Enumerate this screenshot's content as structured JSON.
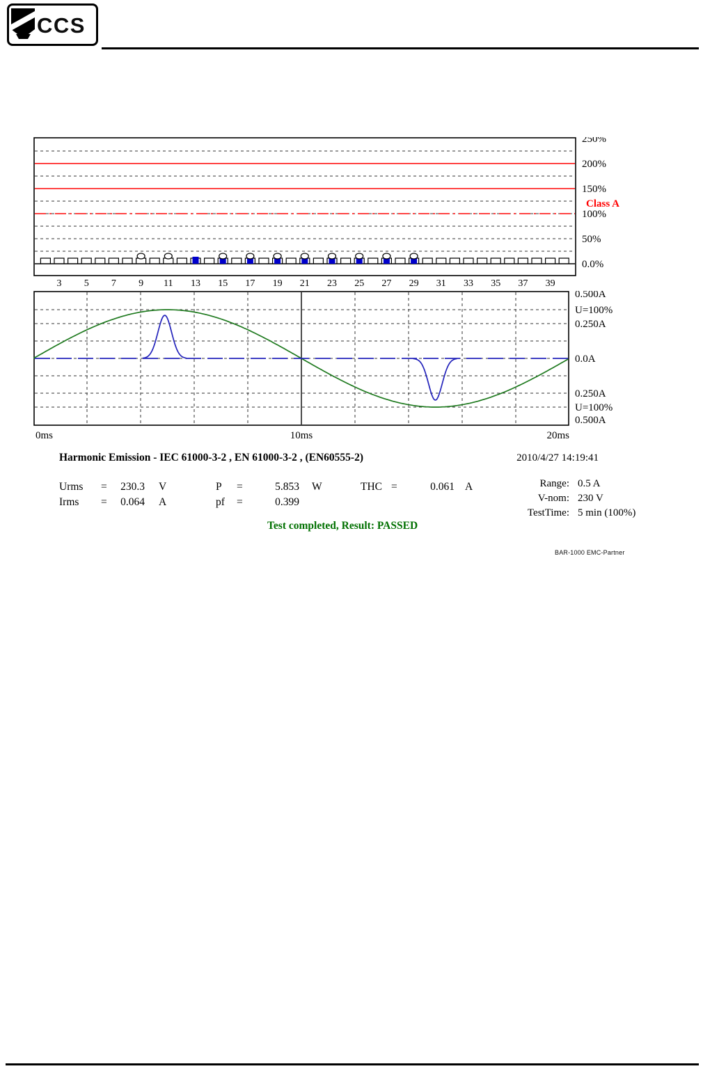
{
  "page": {
    "logo_text": "CCS",
    "device_label": "BAR-1000 EMC-Partner"
  },
  "report": {
    "title": "Harmonic Emission - IEC 61000-3-2 , EN 61000-3-2 , (EN60555-2)",
    "datetime": "2010/4/27 14:19:41",
    "eq": "=",
    "measurements": {
      "urms": {
        "label": "Urms",
        "value": "230.3",
        "unit": "V"
      },
      "p": {
        "label": "P",
        "value": "5.853",
        "unit": "W"
      },
      "thc": {
        "label": "THC",
        "value": "0.061",
        "unit": "A"
      },
      "irms": {
        "label": "Irms",
        "value": "0.064",
        "unit": "A"
      },
      "pf": {
        "label": "pf",
        "value": "0.399",
        "unit": ""
      }
    },
    "settings": [
      {
        "label": "Range:",
        "value": "0.5 A"
      },
      {
        "label": "V-nom:",
        "value": "230 V"
      },
      {
        "label": "TestTime:",
        "value": "5 min (100%)"
      }
    ],
    "result_text": "Test completed, Result: PASSED",
    "result_color": "#007000"
  },
  "chart_data": [
    {
      "id": "harmonics-spectrum",
      "type": "bar",
      "ylim": [
        0,
        250
      ],
      "y_unit": "%",
      "y_ticks_right": [
        {
          "label": "250%",
          "pct": 250
        },
        {
          "label": "200%",
          "pct": 200
        },
        {
          "label": "150%",
          "pct": 150
        },
        {
          "label": "100%",
          "pct": 100
        },
        {
          "label": "50%",
          "pct": 50
        },
        {
          "label": "0.0%",
          "pct": 0
        }
      ],
      "class_annotation": {
        "label": "Class A",
        "color": "#ff0000",
        "pct": 121
      },
      "limit_lines": [
        {
          "pct": 200,
          "style": "solid",
          "color": "#ff2a2a"
        },
        {
          "pct": 150,
          "style": "solid",
          "color": "#ff2a2a"
        },
        {
          "pct": 100,
          "style": "dashdot",
          "color": "#ff2a2a"
        }
      ],
      "grid_pct_step": 25,
      "harmonic_range": [
        2,
        40
      ],
      "x_tick_labels": [
        "3",
        "5",
        "7",
        "9",
        "11",
        "13",
        "15",
        "17",
        "19",
        "21",
        "23",
        "25",
        "27",
        "29",
        "31",
        "33",
        "35",
        "37",
        "39"
      ],
      "bar_color": "#0000cc",
      "measured_bars": [
        {
          "h": 13,
          "pct": 14
        },
        {
          "h": 15,
          "pct": 16
        },
        {
          "h": 17,
          "pct": 15
        },
        {
          "h": 19,
          "pct": 14
        },
        {
          "h": 21,
          "pct": 14
        },
        {
          "h": 23,
          "pct": 13
        },
        {
          "h": 25,
          "pct": 12
        },
        {
          "h": 27,
          "pct": 12
        },
        {
          "h": 29,
          "pct": 12
        }
      ],
      "dot_markers": [
        9,
        11,
        15,
        17,
        19,
        21,
        23,
        25,
        27,
        29
      ]
    },
    {
      "id": "waveforms",
      "type": "line",
      "x_range_ms": [
        0,
        20
      ],
      "x_ticks": [
        {
          "label": "0ms",
          "ms": 0
        },
        {
          "label": "10ms",
          "ms": 10
        },
        {
          "label": "20ms",
          "ms": 20
        }
      ],
      "y_ticks_right": [
        {
          "label": "0.500A",
          "a": 0.5
        },
        {
          "label": "U=100%",
          "a": 0.35
        },
        {
          "label": "0.250A",
          "a": 0.25
        },
        {
          "label": "0.0A",
          "a": 0
        },
        {
          "label": "0.250A",
          "a": -0.25
        },
        {
          "label": "U=100%",
          "a": -0.35
        },
        {
          "label": "0.500A",
          "a": -0.5
        }
      ],
      "grid": {
        "x_divisions": 10,
        "y_lines_a": [
          0.35,
          0.25,
          0.125,
          0,
          -0.125,
          -0.25,
          -0.35
        ],
        "center_vertical_ms": 10
      },
      "series": [
        {
          "name": "voltage",
          "color": "#1f7a1f",
          "type": "sine",
          "amplitude_a": 0.35,
          "period_ms": 20
        },
        {
          "name": "current",
          "color": "#2323bb",
          "type": "pulses",
          "baseline_a": 0,
          "pulses": [
            {
              "center_ms": 4.9,
              "peak_a": 0.31,
              "width_ms": 0.6
            },
            {
              "center_ms": 15.0,
              "peak_a": -0.3,
              "width_ms": 0.6
            }
          ]
        }
      ]
    }
  ]
}
